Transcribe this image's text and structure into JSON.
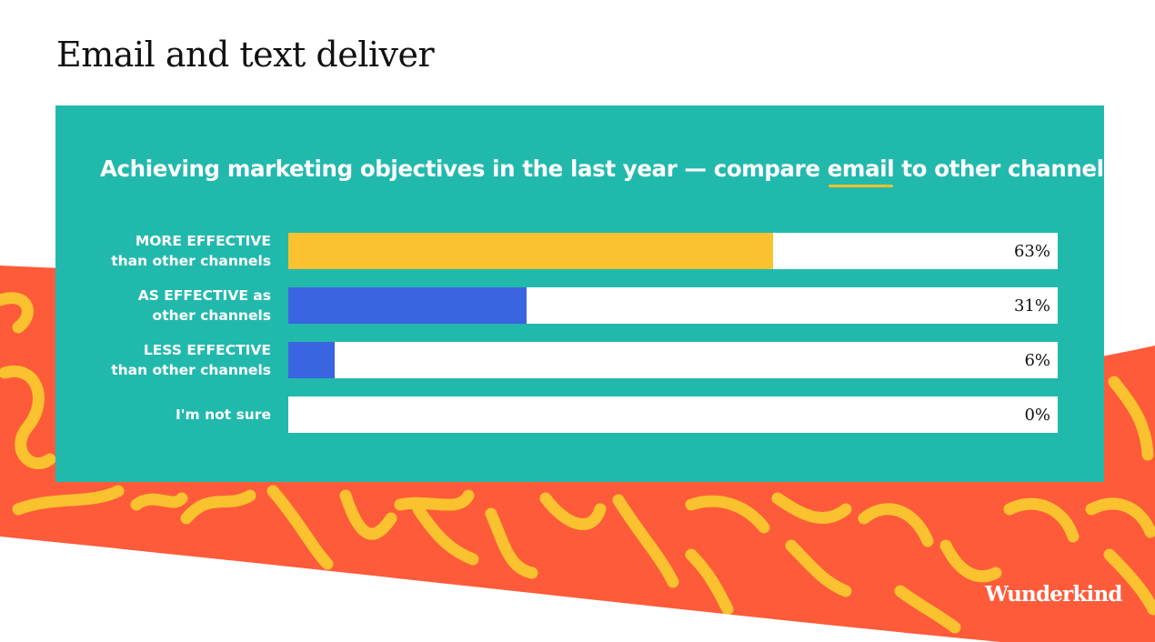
{
  "slide": {
    "title": "Email and text deliver",
    "logo": "Wunderkind"
  },
  "colors": {
    "panel": "#22b9ad",
    "orange": "#fe5b3a",
    "squiggle": "#f9c22e",
    "bar_yellow": "#f9c22e",
    "bar_blue": "#3b64e0"
  },
  "chart_data": {
    "type": "bar",
    "orientation": "horizontal",
    "title_parts": {
      "before": "Achieving marketing objectives in the last year — compare ",
      "highlight": "email",
      "after": " to other channels:"
    },
    "categories": [
      "MORE EFFECTIVE\nthan other channels",
      "AS EFFECTIVE as\nother channels",
      "LESS EFFECTIVE\nthan other channels",
      "I'm not sure"
    ],
    "values": [
      63,
      31,
      6,
      0
    ],
    "value_labels": [
      "63%",
      "31%",
      "6%",
      "0%"
    ],
    "bar_colors": [
      "#f9c22e",
      "#3b64e0",
      "#3b64e0",
      "#3b64e0"
    ],
    "xlim": [
      0,
      100
    ],
    "grid": false
  }
}
